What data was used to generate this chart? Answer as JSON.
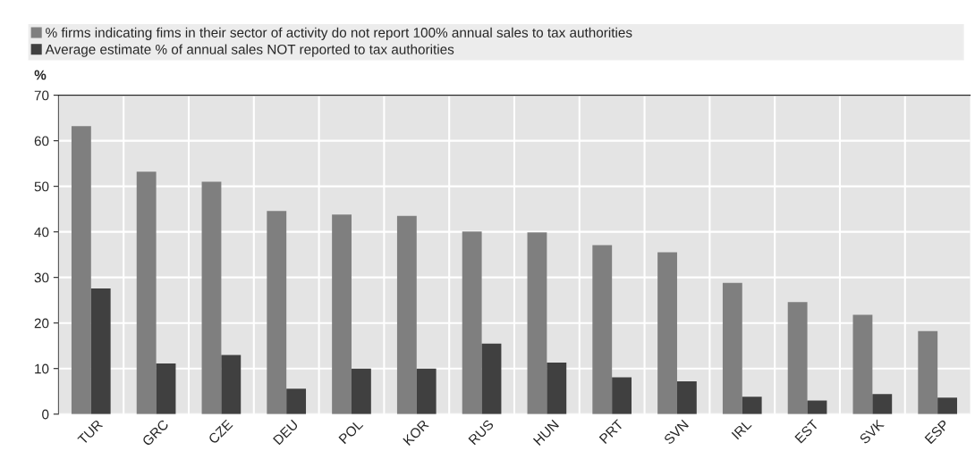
{
  "chart_data": {
    "type": "bar",
    "ylabel": "%",
    "categories": [
      "TUR",
      "GRC",
      "CZE",
      "DEU",
      "POL",
      "KOR",
      "RUS",
      "HUN",
      "PRT",
      "SVN",
      "IRL",
      "EST",
      "SVK",
      "ESP"
    ],
    "series": [
      {
        "name": "% firms indicating fims in their sector of activity do not report 100% annual sales to tax authorities",
        "color": "#7f7f7f",
        "values": [
          63.2,
          53.2,
          51,
          44.6,
          43.8,
          43.5,
          40.1,
          39.9,
          37.1,
          35.5,
          28.8,
          24.6,
          21.8,
          18.2
        ]
      },
      {
        "name": "Average estimate % of annual sales NOT reported to tax authorities",
        "color": "#404040",
        "values": [
          27.6,
          11.1,
          13,
          5.6,
          10,
          10,
          15.5,
          11.3,
          8.1,
          7.2,
          3.8,
          3,
          4.4,
          3.6
        ]
      }
    ],
    "ylim": [
      0,
      70
    ],
    "yticks": [
      0,
      10,
      20,
      30,
      40,
      50,
      60,
      70
    ],
    "grid": true,
    "legend": "top"
  }
}
